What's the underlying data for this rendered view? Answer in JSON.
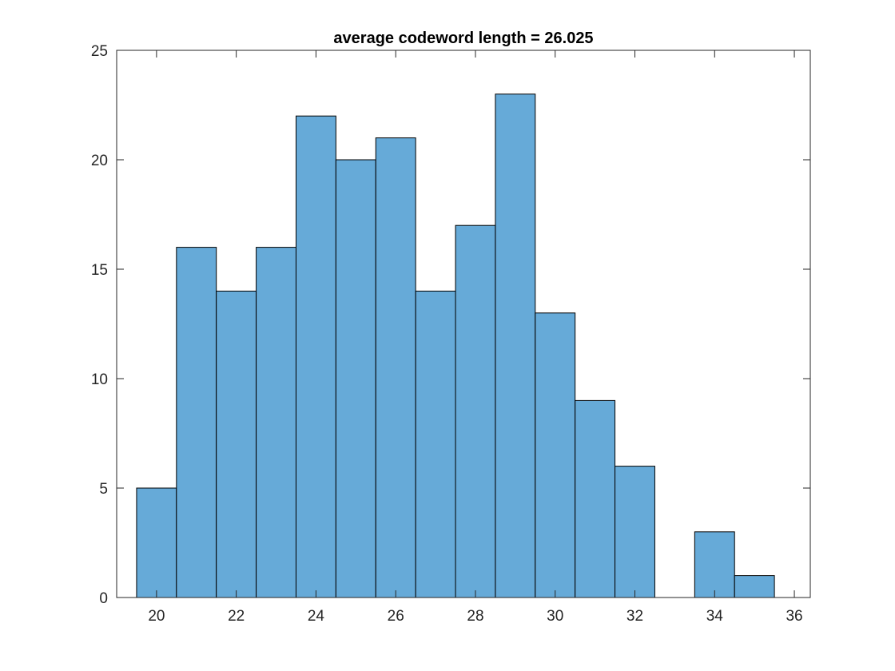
{
  "chart_data": {
    "type": "bar",
    "title": "average codeword length = 26.025",
    "xlabel": "",
    "ylabel": "",
    "bin_edges": [
      19.5,
      20.5,
      21.5,
      22.5,
      23.5,
      24.5,
      25.5,
      26.5,
      27.5,
      28.5,
      29.5,
      30.5,
      31.5,
      32.5,
      33.5,
      34.5,
      35.5
    ],
    "values": [
      5,
      16,
      14,
      16,
      22,
      20,
      21,
      14,
      17,
      23,
      13,
      9,
      6,
      0,
      3,
      1
    ],
    "xlim": [
      19,
      36.4
    ],
    "ylim": [
      0,
      25
    ],
    "xticks": [
      20,
      22,
      24,
      26,
      28,
      30,
      32,
      34,
      36
    ],
    "yticks": [
      0,
      5,
      10,
      15,
      20,
      25
    ],
    "grid": false,
    "bar_color": "#66aad8",
    "edge_color": "#000000"
  }
}
